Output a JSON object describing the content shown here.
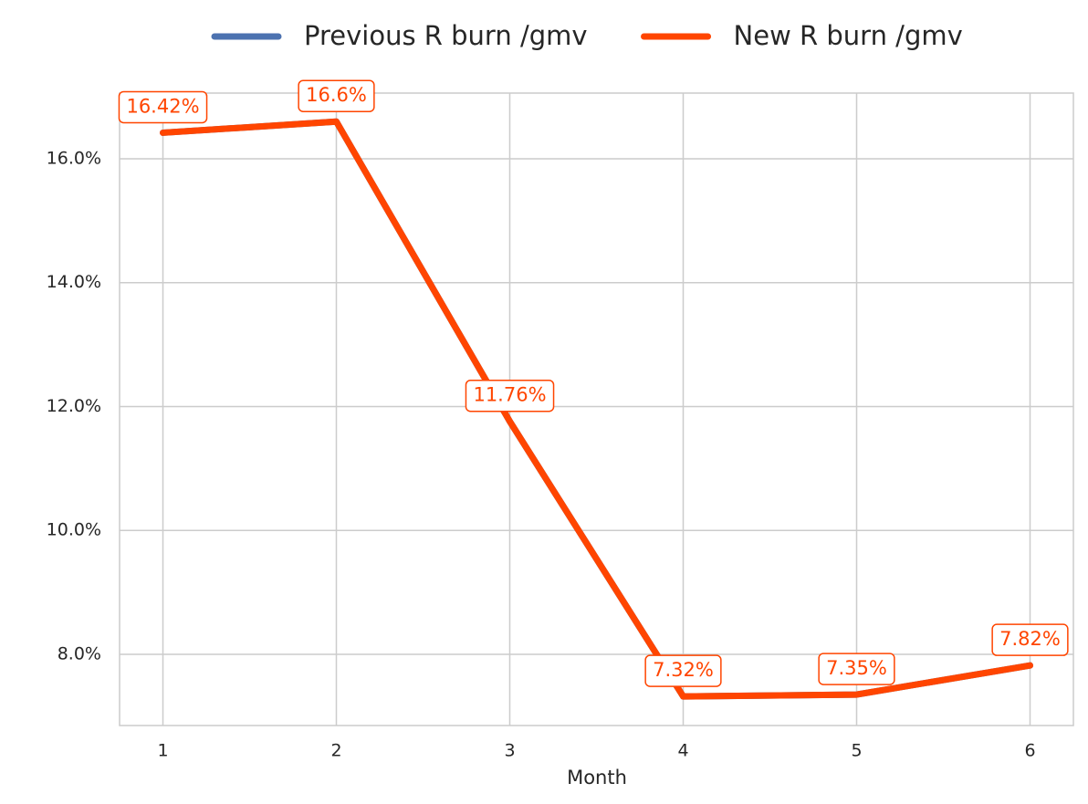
{
  "chart_data": {
    "type": "line",
    "x_label": "Month",
    "x": [
      1,
      2,
      3,
      4,
      5,
      6
    ],
    "series": [
      {
        "name": "Previous R burn /gmv",
        "color": "#4c72b0",
        "values": [
          16.42,
          16.6,
          11.76,
          7.32,
          7.35,
          7.82
        ]
      },
      {
        "name": "New R burn /gmv",
        "color": "#ff4500",
        "values": [
          16.42,
          16.6,
          11.76,
          7.32,
          7.35,
          7.82
        ],
        "value_labels": [
          "16.42%",
          "16.6%",
          "11.76%",
          "7.32%",
          "7.35%",
          "7.82%"
        ]
      }
    ],
    "xlim": [
      0.75,
      6.25
    ],
    "xticks": [
      1,
      2,
      3,
      4,
      5,
      6
    ],
    "ylim": [
      6.85,
      17.06
    ],
    "yticks": [
      {
        "value": 8,
        "label": "8.0%"
      },
      {
        "value": 10,
        "label": "10.0%"
      },
      {
        "value": 12,
        "label": "12.0%"
      },
      {
        "value": 14,
        "label": "14.0%"
      },
      {
        "value": 16,
        "label": "16.0%"
      }
    ],
    "grid": true,
    "legend": "top"
  }
}
